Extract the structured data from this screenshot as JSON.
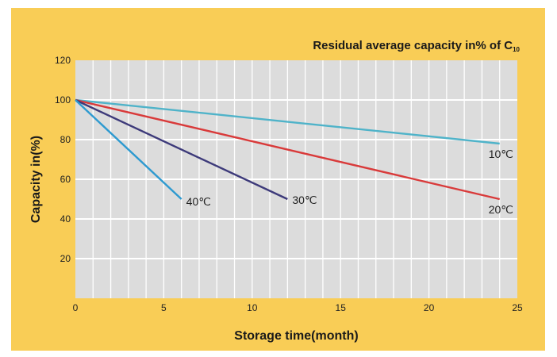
{
  "chart_data": {
    "type": "line",
    "title": "Residual average capacity in% of C",
    "title_subscript": "10",
    "xlabel": "Storage time(month)",
    "ylabel": "Capacity in(%)",
    "xlim": [
      0,
      25
    ],
    "ylim": [
      0,
      120
    ],
    "xticks": [
      "0",
      "5",
      "10",
      "15",
      "20",
      "25"
    ],
    "yticks": [
      "20",
      "40",
      "60",
      "80",
      "100",
      "120"
    ],
    "grid": true,
    "series": [
      {
        "name": "10℃",
        "color": "#4fb3c9",
        "x": [
          0,
          24
        ],
        "y": [
          100,
          78
        ]
      },
      {
        "name": "20℃",
        "color": "#d93a3a",
        "x": [
          0,
          24
        ],
        "y": [
          100,
          50
        ]
      },
      {
        "name": "30℃",
        "color": "#3d3a7a",
        "x": [
          0,
          12
        ],
        "y": [
          100,
          50
        ]
      },
      {
        "name": "40℃",
        "color": "#2e9ad0",
        "x": [
          0,
          6
        ],
        "y": [
          100,
          50
        ]
      }
    ],
    "colors": {
      "plot_background": "#dcdcdc",
      "grid": "#ffffff",
      "panel": "#f9cd56"
    }
  }
}
